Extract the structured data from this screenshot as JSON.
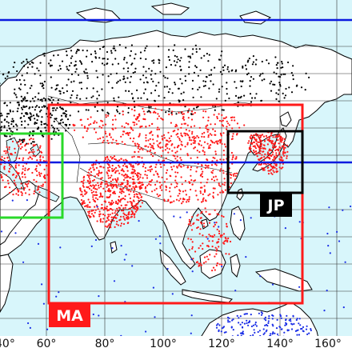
{
  "colors": {
    "ocean": "#d8f6fb",
    "land": "#ffffff",
    "coast": "#000000",
    "graticule": "#333333",
    "blue_line": "#0a1adf",
    "red": "#ff1a1a",
    "black": "#000000",
    "green": "#29d929",
    "blue_dot": "#1a2ee6"
  },
  "lon_labels": [
    "40°",
    "60°",
    "80°",
    "100°",
    "120°",
    "140°",
    "160°"
  ],
  "regions": [
    {
      "label": "MA",
      "color": "#ff1a1a"
    },
    {
      "label": "JP",
      "color": "#000000"
    },
    {
      "label": "",
      "color": "#29d929"
    }
  ]
}
